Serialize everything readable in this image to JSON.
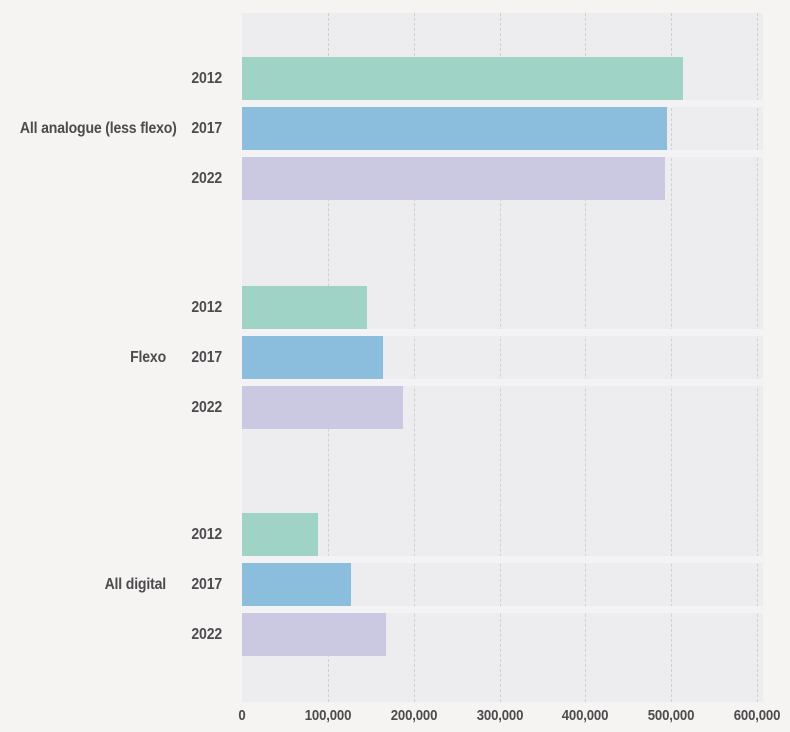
{
  "page": {
    "background_color": "#f5f4f2",
    "text_color": "#4c4c4e"
  },
  "chart_data": {
    "type": "bar",
    "orientation": "horizontal",
    "title": "",
    "xlabel": "",
    "ylabel": "",
    "grid": "vertical-dashed",
    "legend": "none",
    "plot_background": "#edecee",
    "gridline_color": "#d2d0cf",
    "groups": [
      "All analogue (less flexo)",
      "Flexo",
      "All digital"
    ],
    "row_labels": [
      "2012",
      "2017",
      "2022"
    ],
    "series": [
      {
        "name": "2012",
        "color": "#9ed3c6",
        "values": [
          514000,
          146000,
          89000
        ]
      },
      {
        "name": "2017",
        "color": "#8bbddc",
        "values": [
          495000,
          164000,
          127000
        ]
      },
      {
        "name": "2022",
        "color": "#cbc9e1",
        "values": [
          493000,
          188000,
          168000
        ]
      }
    ],
    "xlim": [
      0,
      600000
    ],
    "x_ticks": [
      0,
      100000,
      200000,
      300000,
      400000,
      500000,
      600000
    ],
    "x_tick_labels": [
      "0",
      "100,000",
      "200,000",
      "300,000",
      "400,000",
      "500,000",
      "600,000"
    ]
  }
}
